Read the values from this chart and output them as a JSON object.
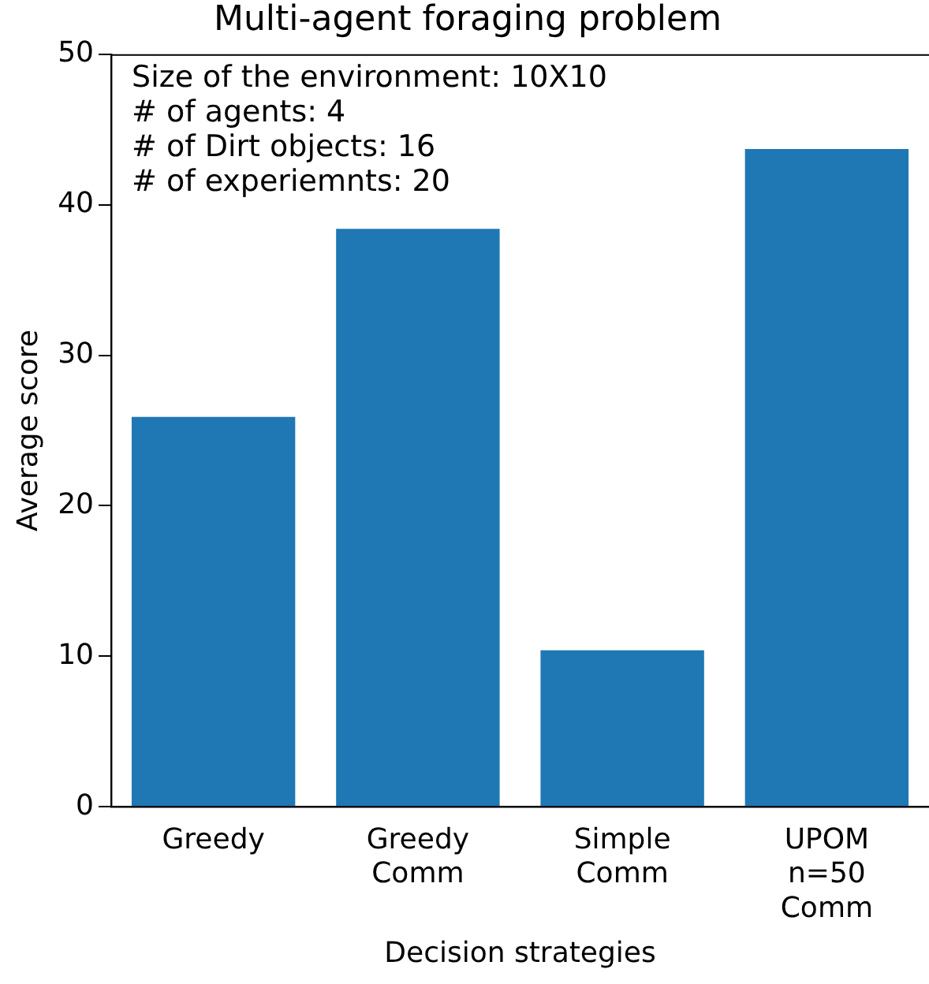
{
  "chart_data": {
    "type": "bar",
    "title": "Multi-agent foraging problem",
    "xlabel": "Decision strategies",
    "ylabel": "Average score",
    "categories": [
      "Greedy",
      "Greedy Comm",
      "Simple Comm",
      "UPOM n=50 Comm"
    ],
    "values": [
      25.9,
      38.4,
      10.4,
      43.7
    ],
    "color": "#1f77b4",
    "ylim": [
      0,
      50
    ],
    "yticks": [
      0,
      10,
      20,
      30,
      40,
      50
    ],
    "grid": false,
    "legend": false,
    "annotations": [
      "Size of the environment: 10X10",
      "# of agents: 4",
      "# of Dirt objects: 16",
      "# of experiemnts: 20"
    ]
  }
}
